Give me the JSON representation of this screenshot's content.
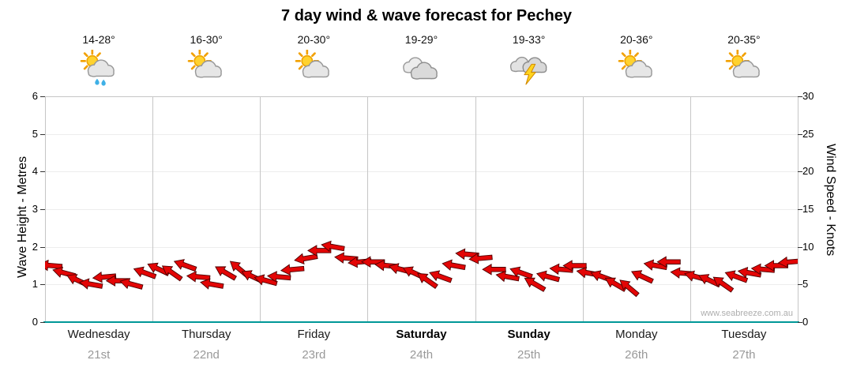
{
  "title": "7 day wind & wave forecast for Pechey",
  "watermark": "www.seabreeze.com.au",
  "days": [
    {
      "name": "Wednesday",
      "date": "21st",
      "temp": "14-28°",
      "icon": "sun-cloud-rain",
      "weekend": false
    },
    {
      "name": "Thursday",
      "date": "22nd",
      "temp": "16-30°",
      "icon": "sun-cloud",
      "weekend": false
    },
    {
      "name": "Friday",
      "date": "23rd",
      "temp": "20-30°",
      "icon": "sun-cloud",
      "weekend": false
    },
    {
      "name": "Saturday",
      "date": "24th",
      "temp": "19-29°",
      "icon": "cloud",
      "weekend": true
    },
    {
      "name": "Sunday",
      "date": "25th",
      "temp": "19-33°",
      "icon": "thunderstorm",
      "weekend": true
    },
    {
      "name": "Monday",
      "date": "26th",
      "temp": "20-36°",
      "icon": "sun-cloud",
      "weekend": false
    },
    {
      "name": "Tuesday",
      "date": "27th",
      "temp": "20-35°",
      "icon": "sun-cloud",
      "weekend": false
    }
  ],
  "axes": {
    "left": {
      "title": "Wave Height - Metres",
      "ticks": [
        0,
        1,
        2,
        3,
        4,
        5,
        6
      ]
    },
    "right": {
      "title": "Wind Speed - Knots",
      "ticks": [
        0,
        5,
        10,
        15,
        20,
        25,
        30
      ]
    }
  },
  "colors": {
    "arrow_fill": "#e30505",
    "arrow_outline": "#4d0000",
    "axis_baseline": "#009898",
    "gridline": "#c6c6c6",
    "date_label": "#999999",
    "watermark": "#aeaeae"
  },
  "chart_data": {
    "type": "scatter",
    "marker": "wind-arrow",
    "title": "7 day wind & wave forecast for Pechey",
    "ylabel_left": "Wave Height - Metres",
    "ylabel_right": "Wind Speed - Knots",
    "ylim_left": [
      0,
      6
    ],
    "ylim_right": [
      0,
      30
    ],
    "grid": "vertical-day-boundaries",
    "legend": "none",
    "x_categories": [
      "Wednesday 21st",
      "Thursday 22nd",
      "Friday 23rd",
      "Saturday 24th",
      "Sunday 25th",
      "Monday 26th",
      "Tuesday 27th"
    ],
    "points_per_day": 8,
    "time_step_hours": 3,
    "series": [
      {
        "name": "Wind speed (knots)",
        "values": [
          7.5,
          6.5,
          5.5,
          5,
          6,
          5.5,
          5,
          6.5,
          7,
          6.5,
          7.5,
          6,
          5,
          6.5,
          7,
          6,
          5.5,
          6,
          7,
          8.5,
          9.5,
          10,
          8.5,
          8,
          8,
          7.5,
          7,
          6.5,
          5.5,
          6,
          7.5,
          9,
          8.5,
          7,
          6,
          6.5,
          5,
          6,
          7,
          7.5,
          6.5,
          6,
          5,
          4.5,
          6,
          7.5,
          8,
          6.5,
          6,
          5.5,
          5,
          6,
          6.5,
          7,
          7.5,
          8
        ]
      },
      {
        "name": "Wind arrow heading (degrees clockwise, 0 = east)",
        "values": [
          185,
          195,
          205,
          190,
          175,
          180,
          195,
          200,
          205,
          215,
          200,
          185,
          190,
          210,
          220,
          205,
          195,
          185,
          175,
          170,
          180,
          190,
          185,
          175,
          180,
          185,
          195,
          205,
          215,
          200,
          190,
          185,
          175,
          180,
          190,
          200,
          210,
          195,
          185,
          180,
          190,
          200,
          210,
          220,
          205,
          190,
          180,
          185,
          195,
          205,
          215,
          200,
          190,
          185,
          180,
          175
        ]
      }
    ]
  }
}
